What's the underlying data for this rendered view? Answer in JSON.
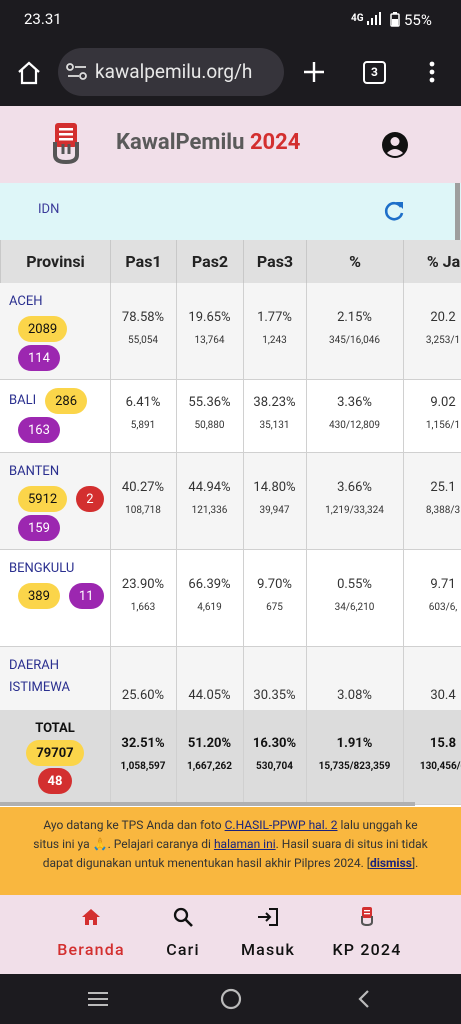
{
  "status": {
    "time": "23.31",
    "network": "4G",
    "battery": "55%"
  },
  "browser": {
    "url": "kawalpemilu.org/h",
    "tabs": "3"
  },
  "header": {
    "brand": "KawalPemilu",
    "year": "2024"
  },
  "breadcrumb": "IDN",
  "table": {
    "columns": [
      "Provinsi",
      "Pas1",
      "Pas2",
      "Pas3",
      "%",
      "% Ja"
    ],
    "rows": [
      {
        "name": "ACEH",
        "badges": [
          {
            "color": "yellow",
            "text": "2089"
          },
          {
            "color": "purple",
            "text": "114"
          }
        ],
        "cells": [
          {
            "pct": "78.58%",
            "count": "55,054"
          },
          {
            "pct": "19.65%",
            "count": "13,764"
          },
          {
            "pct": "1.77%",
            "count": "1,243"
          },
          {
            "pct": "2.15%",
            "count": "345/16,046"
          },
          {
            "pct": "20.2",
            "count": "3,253/1"
          }
        ]
      },
      {
        "name": "BALI",
        "badges": [
          {
            "color": "yellow",
            "text": "286"
          },
          {
            "color": "purple",
            "text": "163"
          }
        ],
        "cells": [
          {
            "pct": "6.41%",
            "count": "5,891"
          },
          {
            "pct": "55.36%",
            "count": "50,880"
          },
          {
            "pct": "38.23%",
            "count": "35,131"
          },
          {
            "pct": "3.36%",
            "count": "430/12,809"
          },
          {
            "pct": "9.02",
            "count": "1,156/1"
          }
        ]
      },
      {
        "name": "BANTEN",
        "badges": [
          {
            "color": "yellow",
            "text": "5912"
          },
          {
            "color": "red",
            "text": "2"
          },
          {
            "color": "purple",
            "text": "159"
          }
        ],
        "cells": [
          {
            "pct": "40.27%",
            "count": "108,718"
          },
          {
            "pct": "44.94%",
            "count": "121,336"
          },
          {
            "pct": "14.80%",
            "count": "39,947"
          },
          {
            "pct": "3.66%",
            "count": "1,219/33,324"
          },
          {
            "pct": "25.1",
            "count": "8,388/3"
          }
        ]
      },
      {
        "name": "BENGKULU",
        "badges": [
          {
            "color": "yellow",
            "text": "389"
          },
          {
            "color": "purple",
            "text": "11"
          }
        ],
        "cells": [
          {
            "pct": "23.90%",
            "count": "1,663"
          },
          {
            "pct": "66.39%",
            "count": "4,619"
          },
          {
            "pct": "9.70%",
            "count": "675"
          },
          {
            "pct": "0.55%",
            "count": "34/6,210"
          },
          {
            "pct": "9.71",
            "count": "603/6,"
          }
        ]
      },
      {
        "name": "DAERAH ISTIMEWA",
        "badges": [],
        "cells": [
          {
            "pct": "25.60%"
          },
          {
            "pct": "44.05%"
          },
          {
            "pct": "30.35%"
          },
          {
            "pct": "3.08%"
          },
          {
            "pct": "30.4"
          }
        ]
      }
    ],
    "total": {
      "name": "TOTAL",
      "badges": [
        {
          "color": "yellow",
          "text": "79707"
        },
        {
          "color": "red",
          "text": "48"
        }
      ],
      "cells": [
        {
          "pct": "32.51%",
          "count": "1,058,597"
        },
        {
          "pct": "51.20%",
          "count": "1,667,262"
        },
        {
          "pct": "16.30%",
          "count": "530,704"
        },
        {
          "pct": "1.91%",
          "count": "15,735/823,359"
        },
        {
          "pct": "15.8",
          "count": "130,456/6"
        }
      ]
    }
  },
  "banner": [
    {
      "text": "Ayo datang ke TPS Anda dan foto "
    },
    {
      "text": "C.HASIL-PPWP hal. 2",
      "link": true
    },
    {
      "text": " lalu unggah ke situs ini ya 🙏. Pelajari caranya di "
    },
    {
      "text": "halaman ini",
      "link": true
    },
    {
      "text": ". Hasil suara di situs ini tidak dapat digunakan untuk menentukan hasil akhir Pilpres 2024. ["
    },
    {
      "text": "dismiss",
      "link": true,
      "bold": true
    },
    {
      "text": "]."
    }
  ],
  "nav": [
    {
      "label": "Beranda",
      "active": true
    },
    {
      "label": "Cari"
    },
    {
      "label": "Masuk"
    },
    {
      "label": "KP 2024"
    }
  ]
}
